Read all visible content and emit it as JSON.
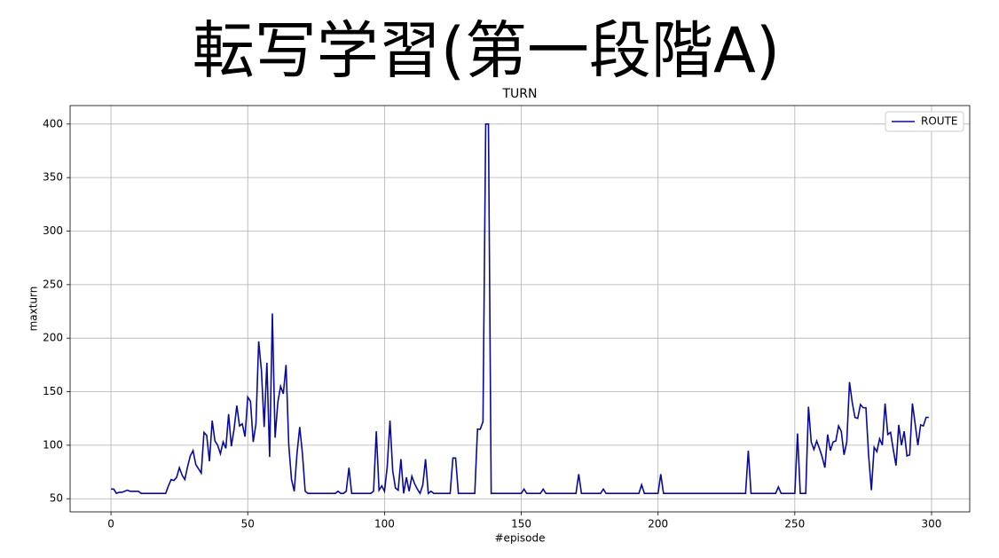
{
  "chart_data": {
    "type": "line",
    "heading": "転写学習(第一段階A)",
    "title": "TURN",
    "xlabel": "#episode",
    "ylabel": "maxturn",
    "x": [
      0,
      1,
      2,
      3,
      4,
      5,
      6,
      7,
      8,
      9,
      10,
      11,
      12,
      13,
      14,
      15,
      16,
      17,
      18,
      19,
      20,
      21,
      22,
      23,
      24,
      25,
      26,
      27,
      28,
      29,
      30,
      31,
      32,
      33,
      34,
      35,
      36,
      37,
      38,
      39,
      40,
      41,
      42,
      43,
      44,
      45,
      46,
      47,
      48,
      49,
      50,
      51,
      52,
      53,
      54,
      55,
      56,
      57,
      58,
      59,
      60,
      61,
      62,
      63,
      64,
      65,
      66,
      67,
      68,
      69,
      70,
      71,
      72,
      73,
      74,
      75,
      76,
      77,
      78,
      79,
      80,
      81,
      82,
      83,
      84,
      85,
      86,
      87,
      88,
      89,
      90,
      91,
      92,
      93,
      94,
      95,
      96,
      97,
      98,
      99,
      100,
      101,
      102,
      103,
      104,
      105,
      106,
      107,
      108,
      109,
      110,
      111,
      112,
      113,
      114,
      115,
      116,
      117,
      118,
      119,
      120,
      121,
      122,
      123,
      124,
      125,
      126,
      127,
      128,
      129,
      130,
      131,
      132,
      133,
      134,
      135,
      136,
      137,
      138,
      139,
      140,
      141,
      142,
      143,
      144,
      145,
      146,
      147,
      148,
      149,
      150,
      151,
      152,
      153,
      154,
      155,
      156,
      157,
      158,
      159,
      160,
      161,
      162,
      163,
      164,
      165,
      166,
      167,
      168,
      169,
      170,
      171,
      172,
      173,
      174,
      175,
      176,
      177,
      178,
      179,
      180,
      181,
      182,
      183,
      184,
      185,
      186,
      187,
      188,
      189,
      190,
      191,
      192,
      193,
      194,
      195,
      196,
      197,
      198,
      199,
      200,
      201,
      202,
      203,
      204,
      205,
      206,
      207,
      208,
      209,
      210,
      211,
      212,
      213,
      214,
      215,
      216,
      217,
      218,
      219,
      220,
      221,
      222,
      223,
      224,
      225,
      226,
      227,
      228,
      229,
      230,
      231,
      232,
      233,
      234,
      235,
      236,
      237,
      238,
      239,
      240,
      241,
      242,
      243,
      244,
      245,
      246,
      247,
      248,
      249,
      250,
      251,
      252,
      253,
      254,
      255,
      256,
      257,
      258,
      259,
      260,
      261,
      262,
      263,
      264,
      265,
      266,
      267,
      268,
      269,
      270,
      271,
      272,
      273,
      274,
      275,
      276,
      277,
      278,
      279,
      280,
      281,
      282,
      283,
      284,
      285,
      286,
      287,
      288,
      289,
      290,
      291,
      292,
      293,
      294,
      295,
      296,
      297,
      298,
      299
    ],
    "series": [
      {
        "name": "ROUTE",
        "color": "#0a0a9a",
        "values": [
          59,
          59,
          55,
          56,
          56,
          57,
          58,
          57,
          57,
          57,
          57,
          55,
          55,
          55,
          55,
          55,
          55,
          55,
          55,
          55,
          55,
          62,
          68,
          67,
          70,
          79,
          72,
          68,
          80,
          90,
          95,
          82,
          78,
          74,
          112,
          109,
          85,
          123,
          104,
          100,
          92,
          103,
          97,
          129,
          99,
          115,
          137,
          118,
          120,
          108,
          145,
          141,
          103,
          120,
          197,
          170,
          117,
          177,
          89,
          223,
          107,
          140,
          155,
          148,
          175,
          100,
          68,
          57,
          92,
          117,
          92,
          57,
          55,
          55,
          55,
          55,
          55,
          55,
          55,
          55,
          55,
          55,
          55,
          57,
          55,
          55,
          57,
          79,
          55,
          55,
          55,
          55,
          55,
          55,
          55,
          55,
          57,
          113,
          58,
          62,
          57,
          80,
          123,
          76,
          60,
          58,
          87,
          55,
          70,
          57,
          71,
          64,
          59,
          55,
          63,
          87,
          55,
          57,
          55,
          55,
          55,
          55,
          55,
          55,
          55,
          88,
          88,
          55,
          55,
          55,
          55,
          55,
          55,
          55,
          115,
          115,
          122,
          400,
          400,
          55,
          55,
          55,
          55,
          55,
          55,
          55,
          55,
          55,
          55,
          55,
          55,
          59,
          55,
          55,
          55,
          55,
          55,
          55,
          59,
          55,
          55,
          55,
          55,
          55,
          55,
          55,
          55,
          55,
          55,
          55,
          55,
          73,
          55,
          55,
          55,
          55,
          55,
          55,
          55,
          55,
          59,
          55,
          55,
          55,
          55,
          55,
          55,
          55,
          55,
          55,
          55,
          55,
          55,
          55,
          63,
          55,
          55,
          55,
          55,
          55,
          55,
          73,
          55,
          55,
          55,
          55,
          55,
          55,
          55,
          55,
          55,
          55,
          55,
          55,
          55,
          55,
          55,
          55,
          55,
          55,
          55,
          55,
          55,
          55,
          55,
          55,
          55,
          55,
          55,
          55,
          55,
          55,
          55,
          95,
          55,
          55,
          55,
          55,
          55,
          55,
          55,
          55,
          55,
          55,
          61,
          55,
          55,
          55,
          55,
          55,
          55,
          111,
          55,
          55,
          55,
          136,
          103,
          96,
          104,
          97,
          89,
          79,
          110,
          95,
          103,
          104,
          118,
          113,
          91,
          103,
          159,
          140,
          126,
          125,
          138,
          135,
          135,
          90,
          58,
          98,
          94,
          106,
          100,
          139,
          110,
          112,
          96,
          81,
          119,
          100,
          113,
          90,
          91,
          139,
          120,
          100,
          119,
          118,
          126,
          126
        ]
      }
    ],
    "xlim": [
      -14.95,
      313.95
    ],
    "ylim": [
      37.75,
      417.25
    ],
    "xticks": [
      0,
      50,
      100,
      150,
      200,
      250,
      300
    ],
    "yticks": [
      50,
      100,
      150,
      200,
      250,
      300,
      350,
      400
    ],
    "grid": true,
    "legend": "upper right"
  }
}
